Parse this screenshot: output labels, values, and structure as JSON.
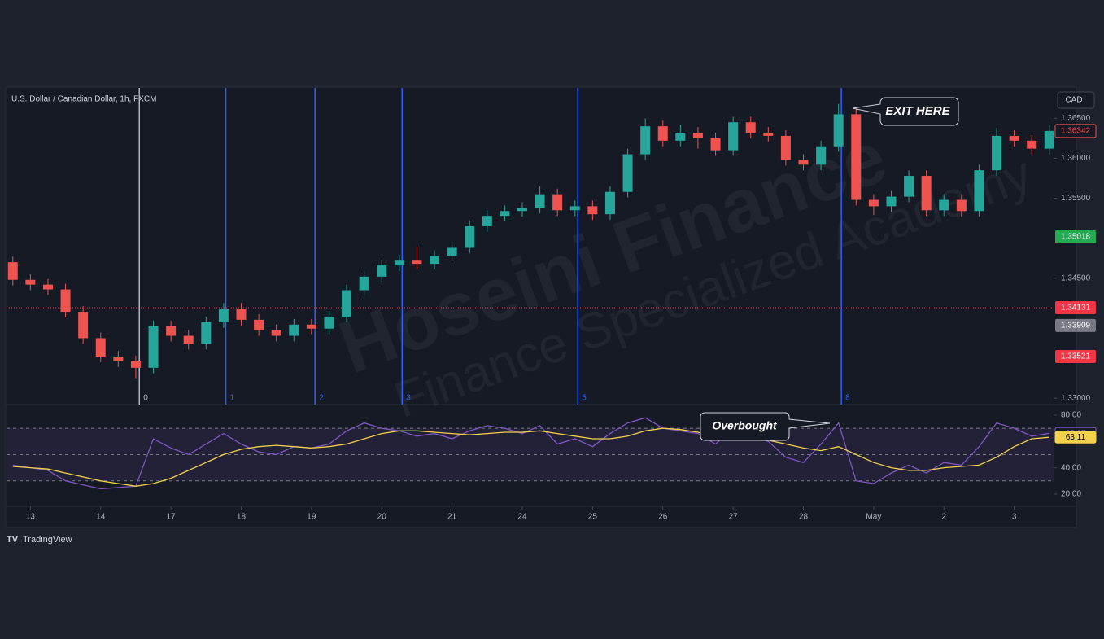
{
  "chart_data": [
    {
      "type": "candlestick",
      "title": "U.S. Dollar / Canadian Dollar, 1h, FXCM",
      "currency": "CAD",
      "watermark": [
        "Hoseini Finance",
        "Finance Specialized Academy"
      ],
      "annotation": "EXIT HERE",
      "up_color": "#26a69a",
      "down_color": "#ef5350",
      "x": [
        -0.25,
        0,
        0.25,
        0.5,
        0.75,
        1,
        1.25,
        1.5,
        1.75,
        2,
        2.25,
        2.5,
        2.75,
        3,
        3.25,
        3.5,
        3.75,
        4,
        4.25,
        4.5,
        4.75,
        5,
        5.25,
        5.5,
        5.75,
        6,
        6.25,
        6.5,
        6.75,
        7,
        7.25,
        7.5,
        7.75,
        8,
        8.25,
        8.5,
        8.75,
        9,
        9.25,
        9.5,
        9.75,
        10,
        10.25,
        10.5,
        10.75,
        11,
        11.25,
        11.5,
        11.75,
        12,
        12.25,
        12.5,
        12.75,
        13,
        13.25,
        13.5,
        13.75,
        14,
        14.25,
        14.5
      ],
      "open": [
        1.347,
        1.3448,
        1.3442,
        1.3436,
        1.3408,
        1.3375,
        1.3352,
        1.3346,
        1.3338,
        1.339,
        1.3378,
        1.3368,
        1.3395,
        1.3412,
        1.3398,
        1.3385,
        1.3378,
        1.3392,
        1.3387,
        1.3402,
        1.3435,
        1.3452,
        1.3466,
        1.3472,
        1.3468,
        1.3478,
        1.3488,
        1.3515,
        1.3528,
        1.3534,
        1.3538,
        1.3555,
        1.3535,
        1.354,
        1.353,
        1.3558,
        1.3605,
        1.364,
        1.3622,
        1.3632,
        1.3625,
        1.361,
        1.3645,
        1.3632,
        1.3628,
        1.3598,
        1.3592,
        1.3615,
        1.3655,
        1.3548,
        1.354,
        1.3552,
        1.3578,
        1.3535,
        1.3548,
        1.3534,
        1.3585,
        1.3628,
        1.3622,
        1.3612
      ],
      "high": [
        1.3477,
        1.3455,
        1.3449,
        1.3443,
        1.3415,
        1.3382,
        1.3359,
        1.3353,
        1.3397,
        1.3397,
        1.3385,
        1.3402,
        1.3419,
        1.3419,
        1.3405,
        1.3392,
        1.3399,
        1.3399,
        1.3409,
        1.3442,
        1.3459,
        1.3473,
        1.3479,
        1.349,
        1.3485,
        1.3495,
        1.3522,
        1.3535,
        1.3541,
        1.3545,
        1.3565,
        1.3562,
        1.3547,
        1.3547,
        1.3565,
        1.3612,
        1.365,
        1.3647,
        1.3642,
        1.3639,
        1.3632,
        1.3652,
        1.3652,
        1.3639,
        1.3635,
        1.3605,
        1.3622,
        1.3668,
        1.3662,
        1.3555,
        1.3559,
        1.3585,
        1.3585,
        1.3555,
        1.3555,
        1.3592,
        1.3638,
        1.3635,
        1.3629,
        1.3641
      ],
      "low": [
        1.3441,
        1.3435,
        1.3429,
        1.3401,
        1.3368,
        1.3345,
        1.3339,
        1.3325,
        1.3331,
        1.3371,
        1.3361,
        1.3361,
        1.3388,
        1.3391,
        1.3378,
        1.3371,
        1.3371,
        1.338,
        1.338,
        1.3395,
        1.3428,
        1.3445,
        1.3459,
        1.3461,
        1.3461,
        1.3471,
        1.3481,
        1.3508,
        1.3521,
        1.3527,
        1.3531,
        1.3528,
        1.3528,
        1.3523,
        1.3523,
        1.3551,
        1.3598,
        1.3615,
        1.3615,
        1.3612,
        1.3603,
        1.3603,
        1.3625,
        1.3621,
        1.3591,
        1.3585,
        1.3585,
        1.3608,
        1.3541,
        1.3529,
        1.3533,
        1.3545,
        1.3528,
        1.3528,
        1.3527,
        1.3527,
        1.3578,
        1.3615,
        1.3605,
        1.3605
      ],
      "close": [
        1.3448,
        1.3442,
        1.3436,
        1.3408,
        1.3375,
        1.3352,
        1.3346,
        1.3338,
        1.339,
        1.3378,
        1.3368,
        1.3395,
        1.3412,
        1.3398,
        1.3385,
        1.3378,
        1.3392,
        1.3387,
        1.3402,
        1.3435,
        1.3452,
        1.3466,
        1.3472,
        1.3468,
        1.3478,
        1.3488,
        1.3515,
        1.3528,
        1.3534,
        1.3538,
        1.3555,
        1.3535,
        1.354,
        1.353,
        1.3558,
        1.3605,
        1.364,
        1.3622,
        1.3632,
        1.3625,
        1.361,
        1.3645,
        1.3632,
        1.3628,
        1.3598,
        1.3592,
        1.3615,
        1.3655,
        1.3548,
        1.354,
        1.3552,
        1.3578,
        1.3535,
        1.3548,
        1.3534,
        1.3585,
        1.3628,
        1.3622,
        1.3612,
        1.36342
      ],
      "xlim": [
        -0.34,
        14.56
      ],
      "ylim": [
        1.3292,
        1.3688
      ],
      "yticks": [
        {
          "value": 1.33,
          "label": "1.33000"
        },
        {
          "value": 1.345,
          "label": "1.34500"
        },
        {
          "value": 1.355,
          "label": "1.35500"
        },
        {
          "value": 1.36,
          "label": "1.36000"
        },
        {
          "value": 1.365,
          "label": "1.36500"
        }
      ],
      "price_labels": [
        {
          "value": 1.35018,
          "label": "1.35018",
          "color": "#22ab4f"
        },
        {
          "value": 1.34131,
          "label": "1.34131",
          "color": "#f23645"
        },
        {
          "value": 1.33909,
          "label": "1.33909",
          "color": "#787b86"
        },
        {
          "value": 1.33521,
          "label": "1.33521",
          "color": "#f23645"
        }
      ],
      "hline": 1.34131,
      "fib_zones": {
        "x": [
          1.55,
          2.78,
          4.05,
          5.29,
          7.79,
          11.54
        ],
        "labels": [
          0,
          1,
          2,
          3,
          5,
          8
        ],
        "color": "#2962ff",
        "first_color": "#b2b5be"
      }
    },
    {
      "type": "line",
      "annotation": "Overbought",
      "footer": "TradingView",
      "x": [
        -0.25,
        0,
        0.25,
        0.5,
        0.75,
        1,
        1.25,
        1.5,
        1.75,
        2,
        2.25,
        2.5,
        2.75,
        3,
        3.25,
        3.5,
        3.75,
        4,
        4.25,
        4.5,
        4.75,
        5,
        5.25,
        5.5,
        5.75,
        6,
        6.25,
        6.5,
        6.75,
        7,
        7.25,
        7.5,
        7.75,
        8,
        8.25,
        8.5,
        8.75,
        9,
        9.25,
        9.5,
        9.75,
        10,
        10.25,
        10.5,
        10.75,
        11,
        11.25,
        11.5,
        11.75,
        12,
        12.25,
        12.5,
        12.75,
        13,
        13.25,
        13.5,
        13.75,
        14,
        14.25,
        14.5
      ],
      "series": [
        {
          "color": "#7e57c2",
          "values": [
            42,
            40,
            38,
            30,
            27,
            24,
            25,
            26,
            62,
            55,
            50,
            58,
            66,
            58,
            52,
            50,
            56,
            55,
            58,
            68,
            74,
            70,
            68,
            64,
            66,
            62,
            68,
            72,
            70,
            66,
            72,
            58,
            62,
            56,
            66,
            74,
            78,
            70,
            68,
            66,
            58,
            70,
            64,
            60,
            48,
            44,
            58,
            74,
            30,
            28,
            36,
            42,
            36,
            44,
            42,
            56,
            74,
            70,
            64,
            66.17
          ]
        },
        {
          "color": "#f2d24b",
          "values": [
            41,
            40,
            39,
            36,
            33,
            30,
            28,
            26,
            28,
            32,
            38,
            44,
            50,
            54,
            56,
            57,
            56,
            55,
            56,
            58,
            62,
            66,
            68,
            68,
            67,
            66,
            65,
            66,
            67,
            67,
            68,
            66,
            64,
            62,
            62,
            64,
            68,
            70,
            69,
            67,
            64,
            62,
            62,
            61,
            58,
            55,
            53,
            56,
            50,
            44,
            40,
            38,
            38,
            40,
            41,
            42,
            48,
            56,
            62,
            63.11
          ]
        }
      ],
      "levels": [
        70,
        50,
        30
      ],
      "xlim": [
        -0.34,
        14.56
      ],
      "xticks": [
        {
          "value": 0,
          "label": "13"
        },
        {
          "value": 1,
          "label": "14"
        },
        {
          "value": 2,
          "label": "17"
        },
        {
          "value": 3,
          "label": "18"
        },
        {
          "value": 4,
          "label": "19"
        },
        {
          "value": 5,
          "label": "20"
        },
        {
          "value": 6,
          "label": "21"
        },
        {
          "value": 7,
          "label": "24"
        },
        {
          "value": 8,
          "label": "25"
        },
        {
          "value": 9,
          "label": "26"
        },
        {
          "value": 10,
          "label": "27"
        },
        {
          "value": 11,
          "label": "28"
        },
        {
          "value": 12,
          "label": "May"
        },
        {
          "value": 13,
          "label": "2"
        },
        {
          "value": 14,
          "label": "3"
        }
      ],
      "ylim": [
        10.7,
        88
      ],
      "yticks": [
        {
          "value": 20,
          "label": "20.00"
        },
        {
          "value": 40,
          "label": "40.00"
        },
        {
          "value": 80,
          "label": "80.00"
        }
      ]
    }
  ]
}
